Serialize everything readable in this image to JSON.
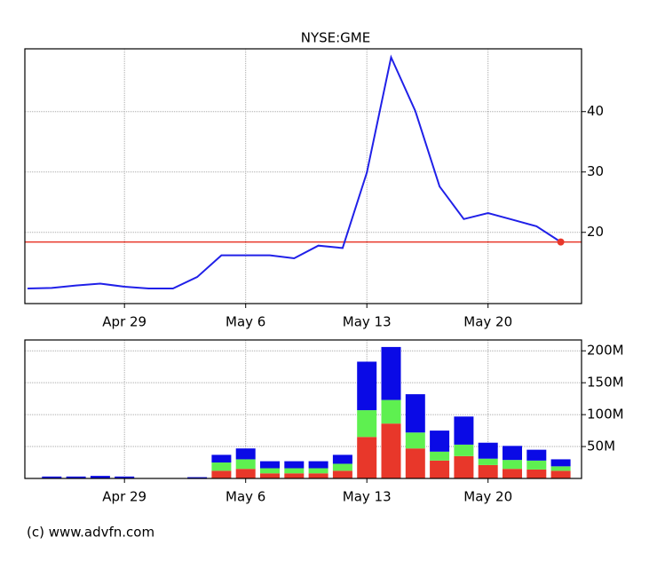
{
  "chart_data": [
    {
      "type": "line",
      "title": "NYSE:GME",
      "categories": [
        null,
        null,
        null,
        null,
        "Apr 29",
        null,
        null,
        null,
        null,
        "May 6",
        null,
        null,
        null,
        null,
        "May 13",
        null,
        null,
        null,
        null,
        "May 20",
        null,
        null,
        null
      ],
      "values": [
        10.7,
        10.8,
        11.2,
        11.5,
        11.0,
        10.7,
        10.7,
        12.6,
        16.2,
        16.2,
        16.2,
        15.7,
        17.8,
        17.4,
        29.9,
        49.0,
        40.1,
        27.6,
        22.2,
        23.2,
        22.1,
        21.0,
        18.4
      ],
      "color": "#2020e8",
      "reference_line": {
        "value": 18.4,
        "color": "#e8372a"
      },
      "ylim": [
        8.2,
        50.4
      ],
      "yticks": [
        20,
        30,
        40
      ],
      "grid": true
    },
    {
      "type": "stacked_bar",
      "categories": [
        null,
        null,
        null,
        null,
        "Apr 29",
        null,
        null,
        null,
        null,
        "May 6",
        null,
        null,
        null,
        null,
        "May 13",
        null,
        null,
        null,
        null,
        "May 20",
        null,
        null,
        null
      ],
      "series": [
        {
          "color": "#e8372a",
          "values": [
            null,
            0,
            0,
            0,
            0,
            null,
            null,
            0,
            12,
            15,
            8,
            8,
            8,
            12,
            65,
            86,
            47,
            28,
            35,
            21,
            15,
            14,
            12
          ]
        },
        {
          "color": "#5ef050",
          "values": [
            null,
            0,
            0,
            0,
            0,
            null,
            null,
            0,
            13,
            15,
            8,
            8,
            8,
            11,
            42,
            37,
            25,
            14,
            18,
            10,
            14,
            14,
            7
          ]
        },
        {
          "color": "#0a0ae6",
          "values": [
            null,
            3,
            3,
            4,
            3,
            null,
            null,
            2,
            12,
            17,
            11,
            11,
            11,
            14,
            76,
            83,
            60,
            33,
            44,
            25,
            22,
            17,
            11
          ]
        }
      ],
      "ylim": [
        0,
        217
      ],
      "yticks": [
        {
          "value": 50,
          "label": "50M"
        },
        {
          "value": 100,
          "label": "100M"
        },
        {
          "value": 150,
          "label": "150M"
        },
        {
          "value": 200,
          "label": "200M"
        }
      ],
      "grid": true
    }
  ],
  "source": "(c) www.advfn.com"
}
